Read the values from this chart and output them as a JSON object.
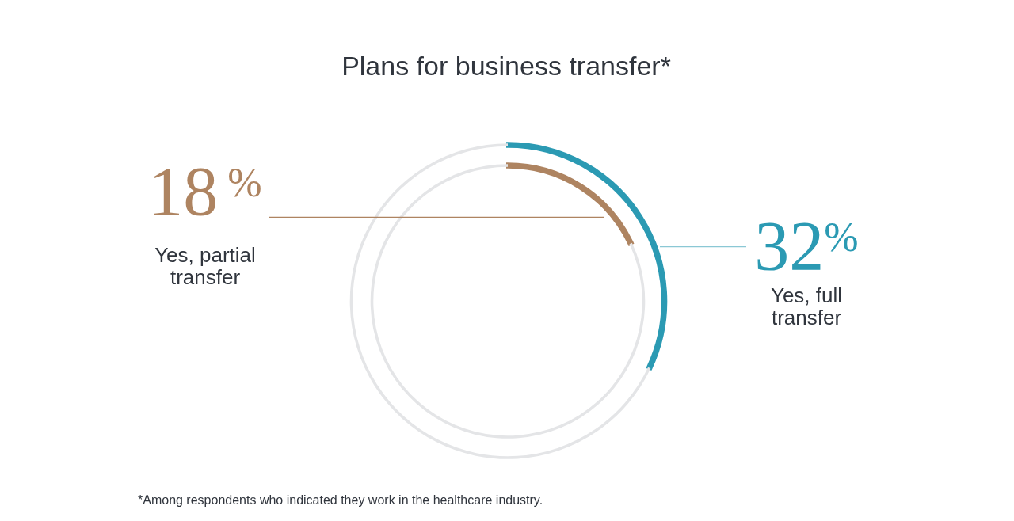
{
  "chart_data": [
    {
      "type": "donut",
      "title": "Plans for business transfer*",
      "categories": [
        "Yes, full transfer",
        null
      ],
      "values": [
        32,
        68
      ],
      "colors": [
        "#2b9ab3",
        "#e4e5e7"
      ],
      "value_labels": [
        "32%",
        null
      ],
      "annotations": [
        "*Among respondents who indicated they work in the healthcare industry."
      ]
    },
    {
      "type": "donut",
      "categories": [
        "Yes, partial transfer",
        null
      ],
      "values": [
        18,
        82
      ],
      "colors": [
        "#ae8461",
        "#e4e5e7"
      ],
      "value_labels": [
        "18%",
        null
      ]
    }
  ]
}
